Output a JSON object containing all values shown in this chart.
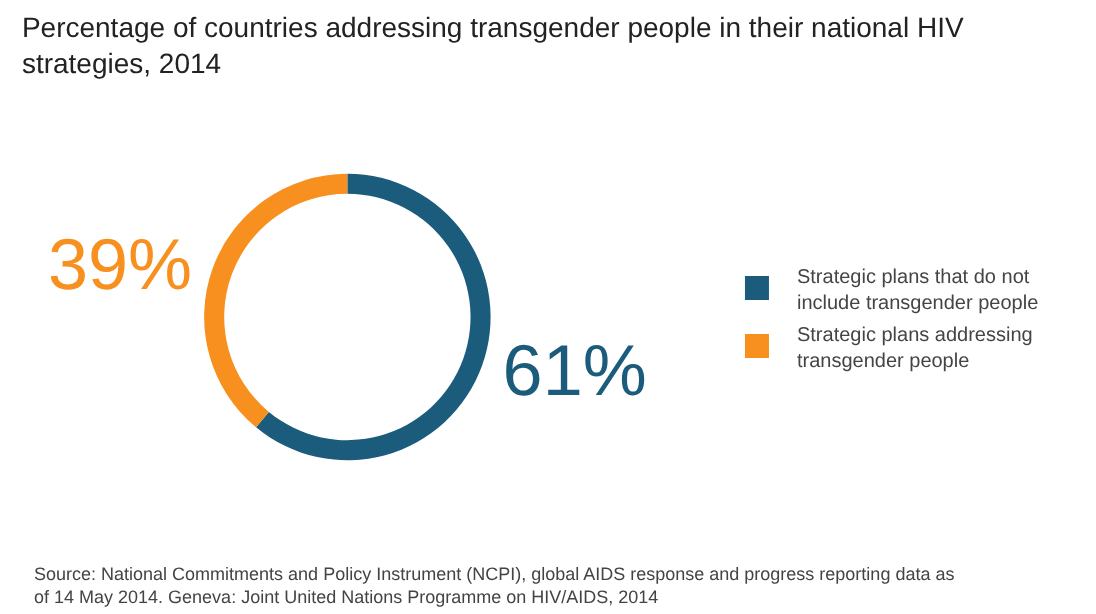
{
  "chart_data": {
    "type": "donut",
    "title": "Percentage of countries addressing transgender people in their national HIV strategies, 2014",
    "categories": [
      "Strategic plans that do not include transgender people",
      "Strategic plans addressing transgender people"
    ],
    "values": [
      61,
      39
    ],
    "colors": [
      "#1b5b7c",
      "#f7901e"
    ],
    "value_labels": [
      "61%",
      "39%"
    ],
    "legend": "right",
    "annotations": [
      "Source: National Commitments and Policy Instrument (NCPI), global AIDS response and progress reporting data as of 14 May 2014. Geneva: Joint United Nations Programme on HIV/AIDS, 2014"
    ]
  }
}
